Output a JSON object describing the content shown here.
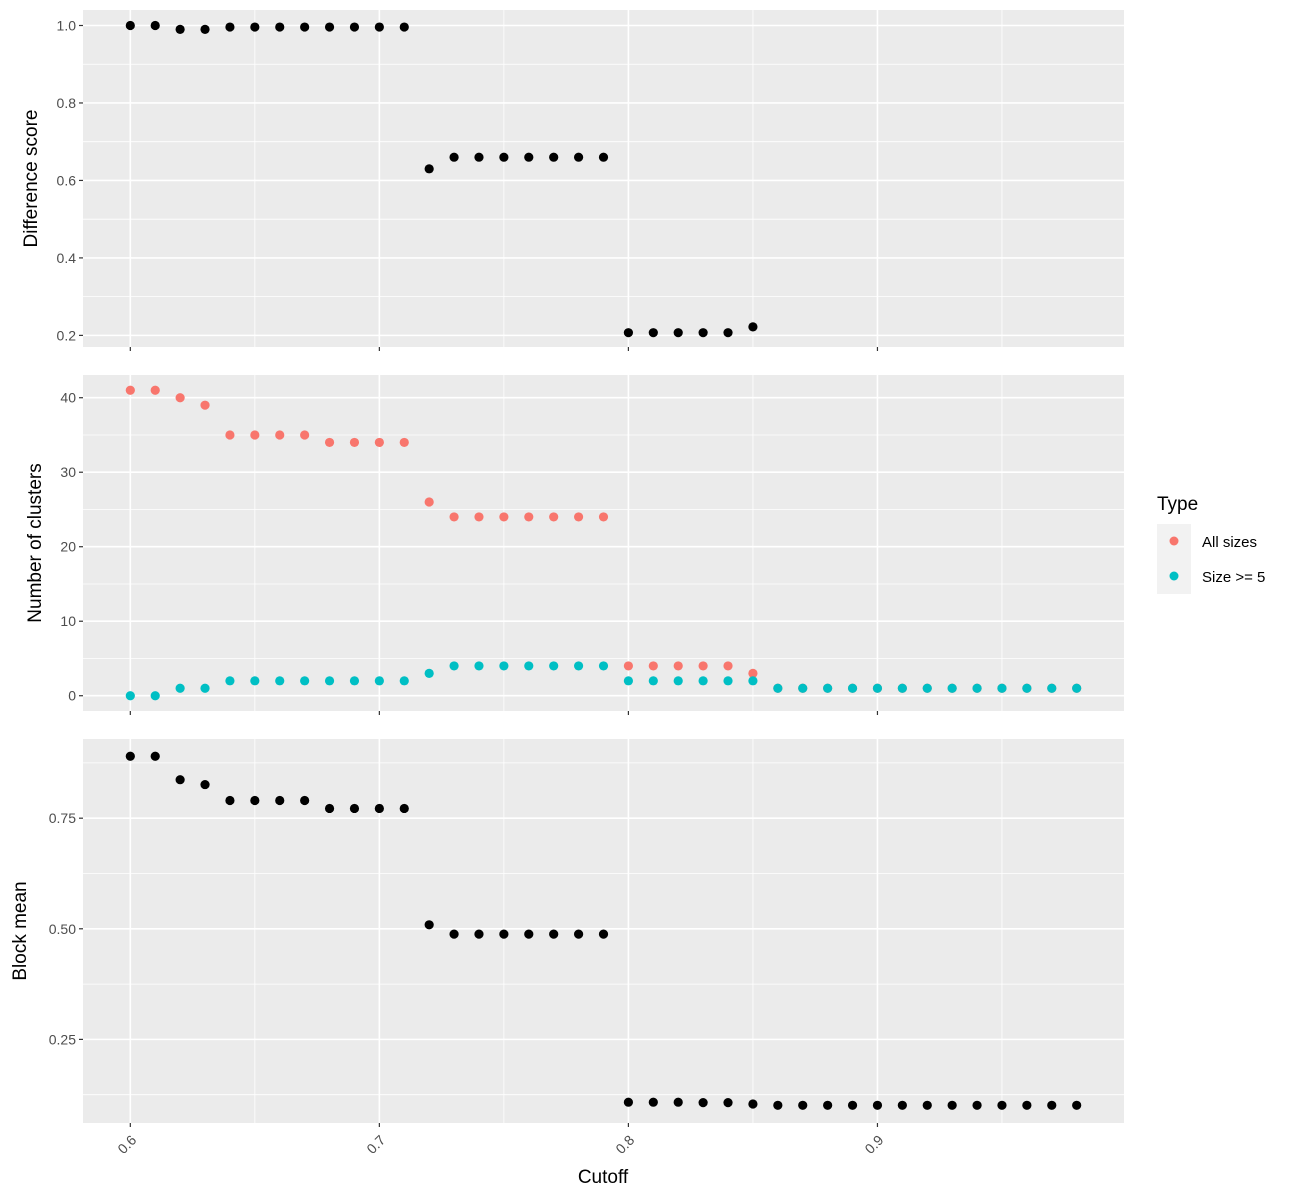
{
  "x_axis": {
    "label": "Cutoff",
    "ticks": [
      0.6,
      0.7,
      0.8,
      0.9
    ],
    "tick_labels": [
      "0.6",
      "0.7",
      "0.8",
      "0.9"
    ],
    "range": [
      0.581,
      0.999
    ]
  },
  "legend": {
    "title": "Type",
    "placement": "right",
    "entries": [
      {
        "label": "All sizes",
        "color": "#F8766D"
      },
      {
        "label": "Size >= 5",
        "color": "#00BFC4"
      }
    ]
  },
  "colors": {
    "panel_background": "#EBEBEB",
    "grid": "#FFFFFF",
    "point_default": "#000000",
    "all_sizes": "#F8766D",
    "size_ge_5": "#00BFC4"
  },
  "chart_data": [
    {
      "type": "scatter",
      "panel": "top",
      "ylabel": "Difference score",
      "ylim": [
        0.17,
        1.04
      ],
      "yticks": [
        0.2,
        0.4,
        0.6,
        0.8,
        1.0
      ],
      "ytick_labels": [
        "0.2",
        "0.4",
        "0.6",
        "0.8",
        "1.0"
      ],
      "grid": true,
      "series": [
        {
          "color": "#000000",
          "x": [
            0.6,
            0.61,
            0.62,
            0.63,
            0.64,
            0.65,
            0.66,
            0.67,
            0.68,
            0.69,
            0.7,
            0.71,
            0.72,
            0.73,
            0.74,
            0.75,
            0.76,
            0.77,
            0.78,
            0.79,
            0.8,
            0.81,
            0.82,
            0.83,
            0.84,
            0.85
          ],
          "y": [
            1.0,
            1.0,
            0.99,
            0.99,
            0.996,
            0.996,
            0.996,
            0.996,
            0.996,
            0.996,
            0.996,
            0.996,
            0.63,
            0.66,
            0.66,
            0.66,
            0.66,
            0.66,
            0.66,
            0.66,
            0.207,
            0.207,
            0.207,
            0.207,
            0.207,
            0.222
          ]
        }
      ]
    },
    {
      "type": "scatter",
      "panel": "middle",
      "ylabel": "Number of clusters",
      "ylim": [
        -2.05,
        43.05
      ],
      "yticks": [
        0,
        10,
        20,
        30,
        40
      ],
      "ytick_labels": [
        "0",
        "10",
        "20",
        "30",
        "40"
      ],
      "grid": true,
      "series": [
        {
          "name": "All sizes",
          "color": "#F8766D",
          "x": [
            0.6,
            0.61,
            0.62,
            0.63,
            0.64,
            0.65,
            0.66,
            0.67,
            0.68,
            0.69,
            0.7,
            0.71,
            0.72,
            0.73,
            0.74,
            0.75,
            0.76,
            0.77,
            0.78,
            0.79,
            0.8,
            0.81,
            0.82,
            0.83,
            0.84,
            0.85,
            0.86,
            0.87,
            0.88,
            0.89,
            0.9,
            0.91,
            0.92,
            0.93,
            0.94,
            0.95,
            0.96,
            0.97,
            0.98
          ],
          "y": [
            41,
            41,
            40,
            39,
            35,
            35,
            35,
            35,
            34,
            34,
            34,
            34,
            26,
            24,
            24,
            24,
            24,
            24,
            24,
            24,
            4,
            4,
            4,
            4,
            4,
            3,
            1,
            1,
            1,
            1,
            1,
            1,
            1,
            1,
            1,
            1,
            1,
            1,
            1
          ]
        },
        {
          "name": "Size >= 5",
          "color": "#00BFC4",
          "x": [
            0.6,
            0.61,
            0.62,
            0.63,
            0.64,
            0.65,
            0.66,
            0.67,
            0.68,
            0.69,
            0.7,
            0.71,
            0.72,
            0.73,
            0.74,
            0.75,
            0.76,
            0.77,
            0.78,
            0.79,
            0.8,
            0.81,
            0.82,
            0.83,
            0.84,
            0.85,
            0.86,
            0.87,
            0.88,
            0.89,
            0.9,
            0.91,
            0.92,
            0.93,
            0.94,
            0.95,
            0.96,
            0.97,
            0.98
          ],
          "y": [
            0,
            0,
            1,
            1,
            2,
            2,
            2,
            2,
            2,
            2,
            2,
            2,
            3,
            4,
            4,
            4,
            4,
            4,
            4,
            4,
            2,
            2,
            2,
            2,
            2,
            2,
            1,
            1,
            1,
            1,
            1,
            1,
            1,
            1,
            1,
            1,
            1,
            1,
            1
          ]
        }
      ]
    },
    {
      "type": "scatter",
      "panel": "bottom",
      "ylabel": "Block mean",
      "ylim": [
        0.061,
        0.929
      ],
      "yticks": [
        0.25,
        0.5,
        0.75
      ],
      "ytick_labels": [
        "0.25",
        "0.50",
        "0.75"
      ],
      "grid": true,
      "series": [
        {
          "color": "#000000",
          "x": [
            0.6,
            0.61,
            0.62,
            0.63,
            0.64,
            0.65,
            0.66,
            0.67,
            0.68,
            0.69,
            0.7,
            0.71,
            0.72,
            0.73,
            0.74,
            0.75,
            0.76,
            0.77,
            0.78,
            0.79,
            0.8,
            0.81,
            0.82,
            0.83,
            0.84,
            0.85,
            0.86,
            0.87,
            0.88,
            0.89,
            0.9,
            0.91,
            0.92,
            0.93,
            0.94,
            0.95,
            0.96,
            0.97,
            0.98
          ],
          "y": [
            0.89,
            0.89,
            0.837,
            0.826,
            0.79,
            0.79,
            0.79,
            0.79,
            0.772,
            0.772,
            0.772,
            0.772,
            0.509,
            0.488,
            0.488,
            0.488,
            0.488,
            0.488,
            0.488,
            0.488,
            0.108,
            0.108,
            0.108,
            0.107,
            0.107,
            0.104,
            0.101,
            0.101,
            0.101,
            0.101,
            0.101,
            0.101,
            0.101,
            0.101,
            0.101,
            0.101,
            0.101,
            0.101,
            0.101
          ]
        }
      ]
    }
  ]
}
